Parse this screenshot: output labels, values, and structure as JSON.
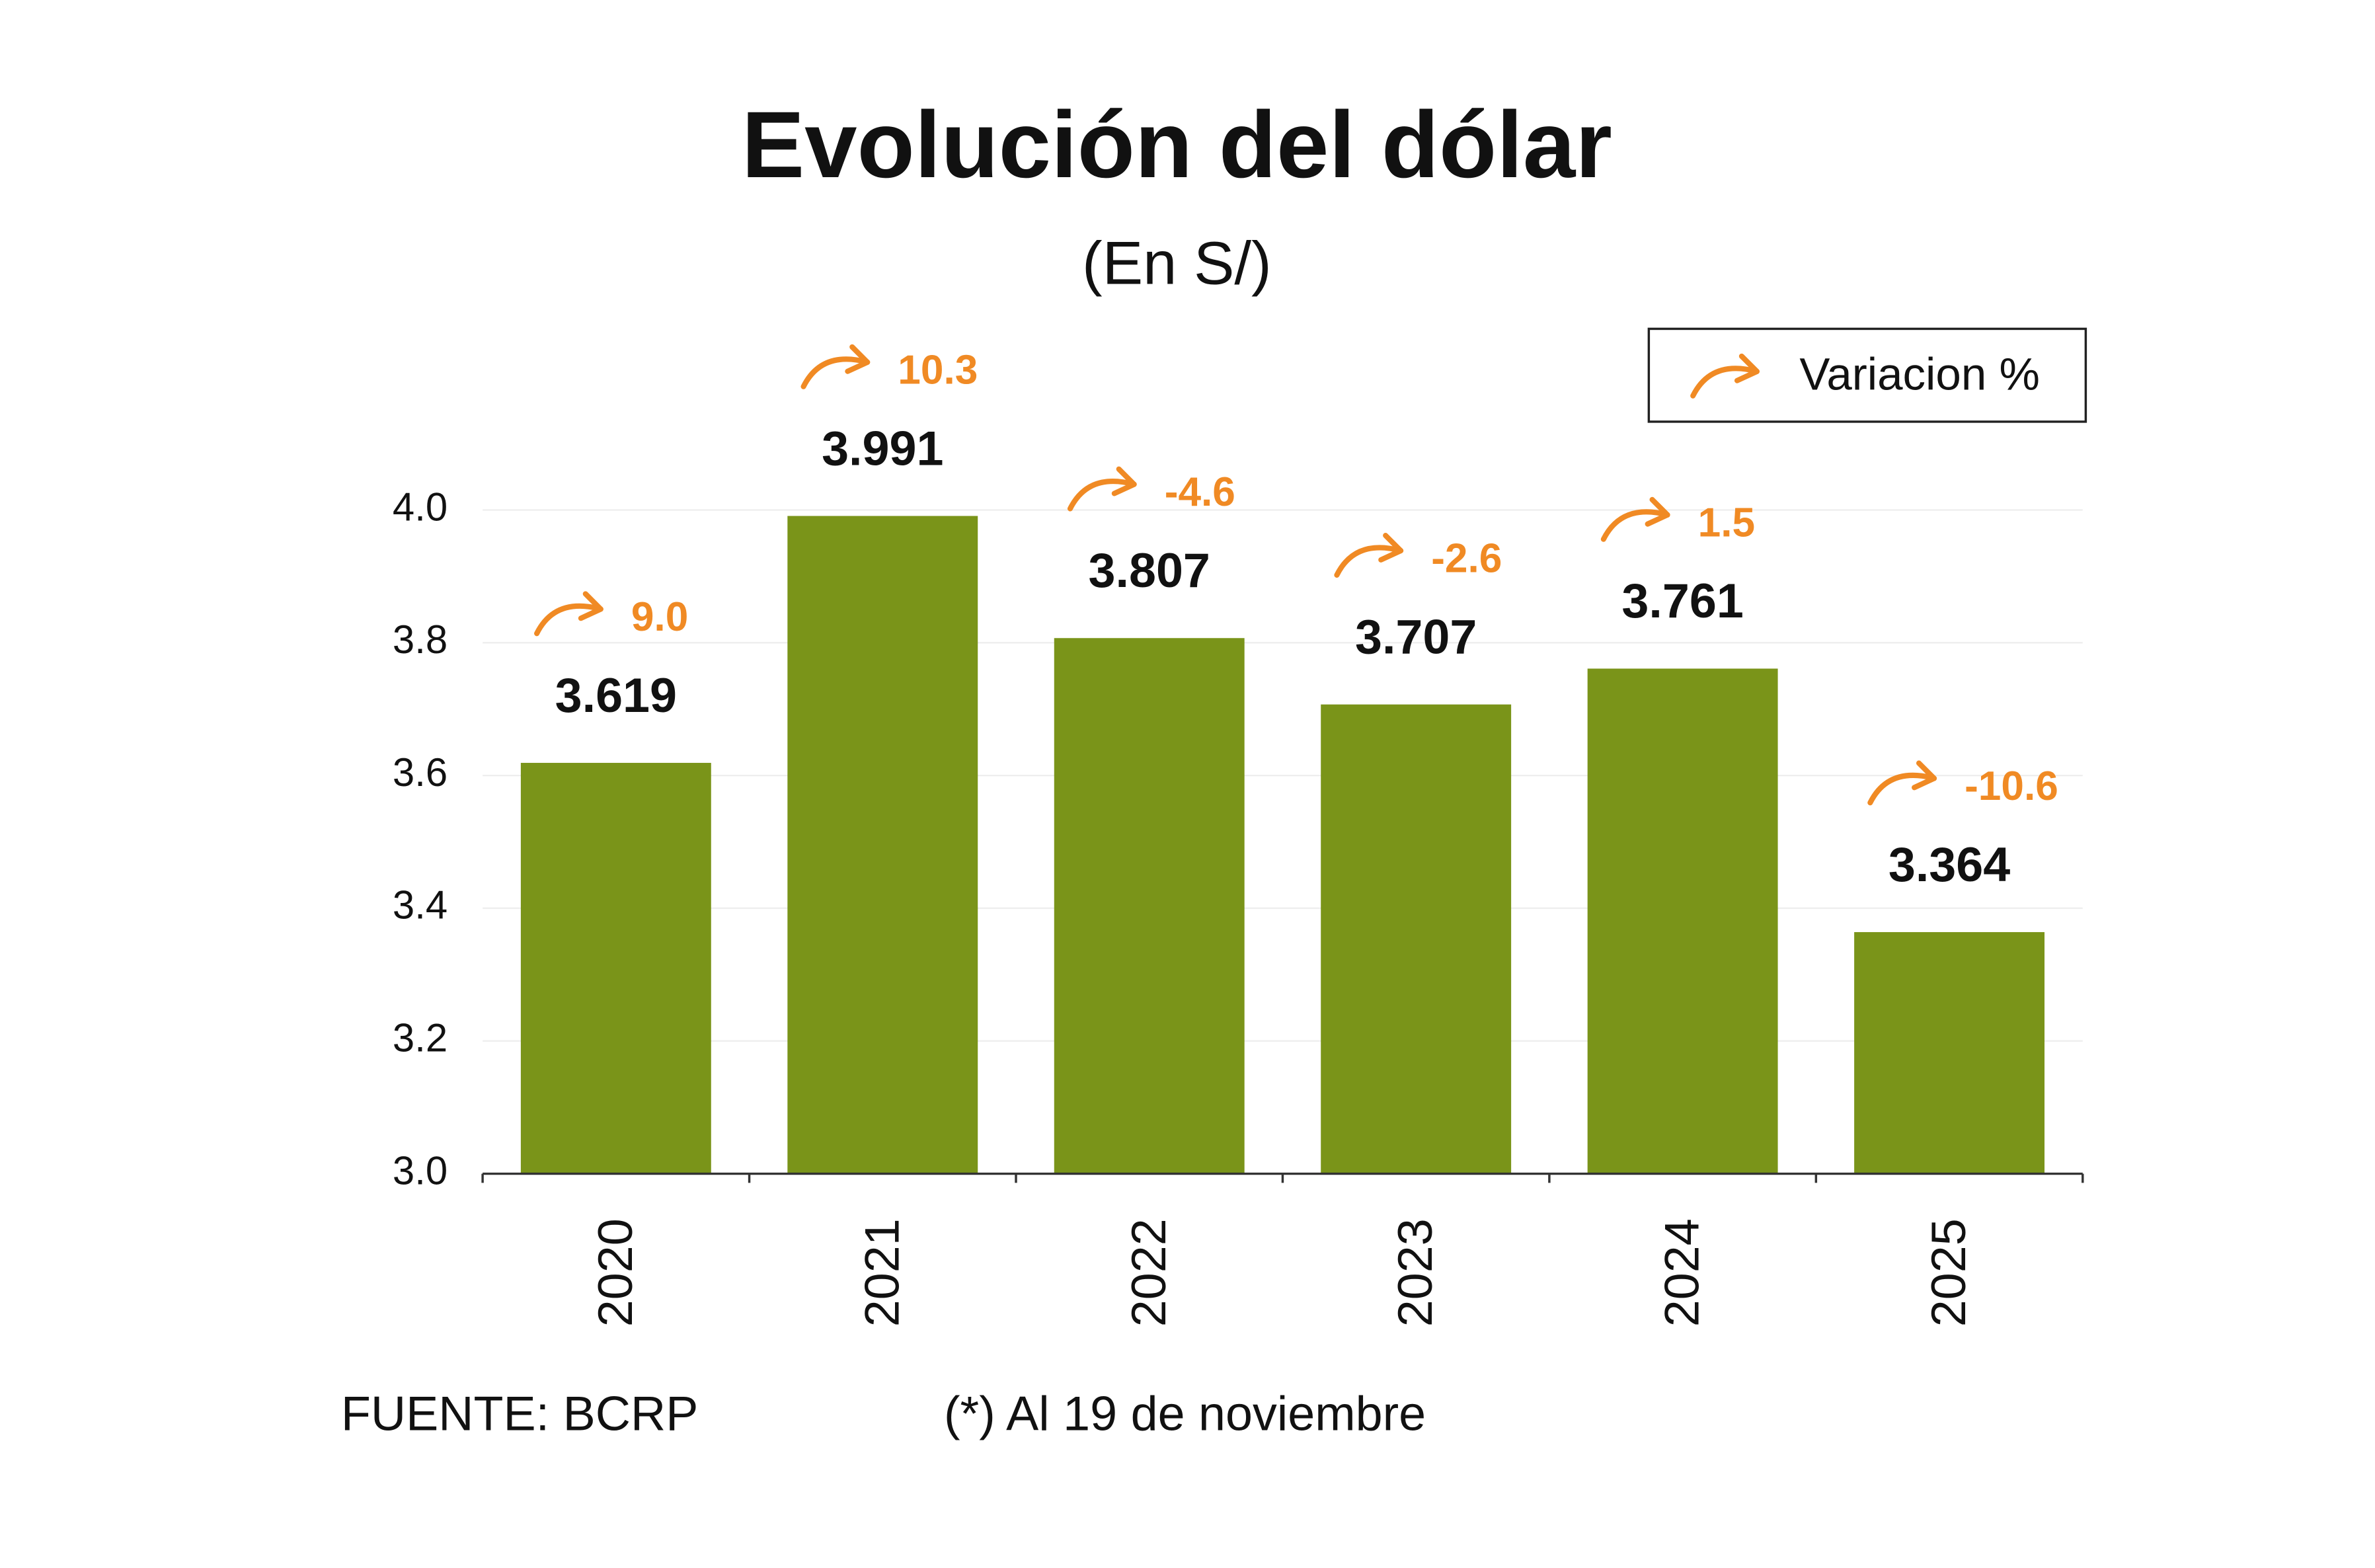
{
  "chart_data": {
    "type": "bar",
    "title": "Evolución del dólar",
    "subtitle": "(En S/)",
    "categories": [
      "2020",
      "2021",
      "2022",
      "2023",
      "2024",
      "2025"
    ],
    "values": [
      3.619,
      3.991,
      3.807,
      3.707,
      3.761,
      3.364
    ],
    "color": "#7a9419",
    "variation": {
      "name": "Variacion %",
      "color": "#f08a24",
      "values": [
        9.0,
        10.3,
        -4.6,
        -2.6,
        1.5,
        -10.6
      ],
      "value_labels": [
        "9.0",
        "10.3",
        "-4.6",
        "-2.6",
        "1.5",
        "-10.6"
      ]
    },
    "ylim": [
      3.0,
      4.0
    ],
    "yticks": [
      {
        "value": 3.0,
        "label": "3.0"
      },
      3.2,
      3.4,
      3.6,
      3.8,
      {
        "value": 4.0,
        "label": "4.0"
      }
    ],
    "grid": true,
    "legend": "top-right",
    "source": "FUENTE: BCRP",
    "note": "(*) Al 19 de noviembre"
  }
}
